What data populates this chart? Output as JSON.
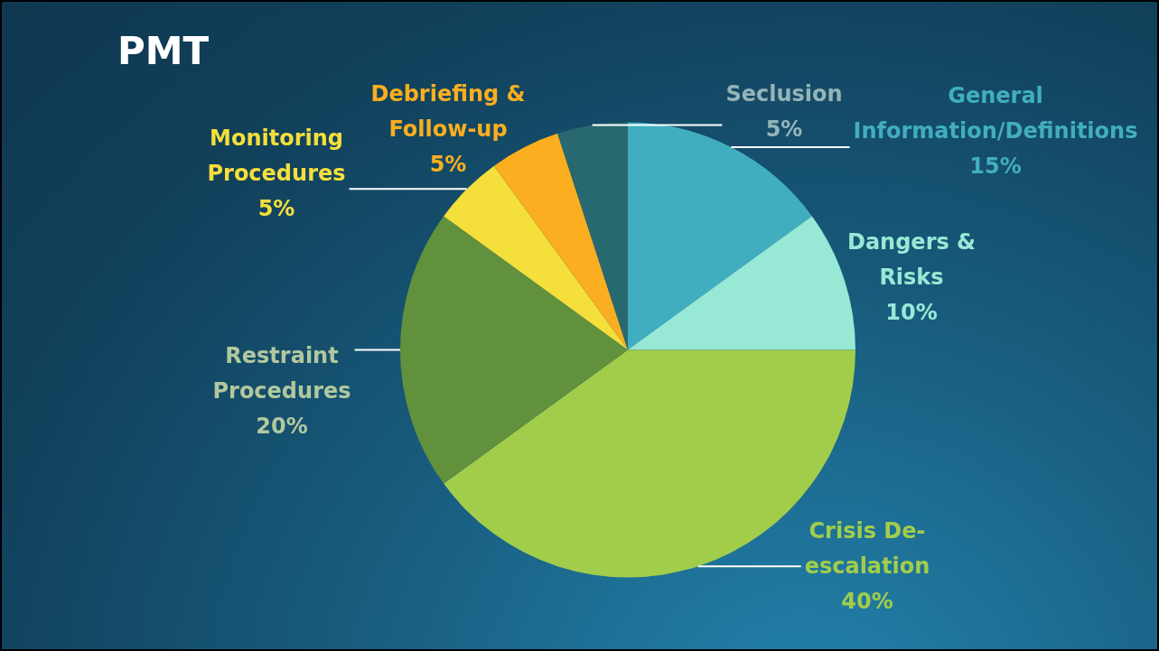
{
  "chart_data": {
    "type": "pie",
    "title": "PMT",
    "categories": [
      "General Information/Definitions",
      "Dangers & Risks",
      "Crisis De-escalation",
      "Restraint Procedures",
      "Monitoring Procedures",
      "Debriefing & Follow-up",
      "Seclusion"
    ],
    "values": [
      15,
      10,
      40,
      20,
      5,
      5,
      5
    ],
    "value_labels": [
      "15%",
      "10%",
      "40%",
      "20%",
      "5%",
      "5%",
      "5%"
    ],
    "colors": [
      "#41aebf",
      "#98e8d6",
      "#a2cd4b",
      "#62913d",
      "#f4df3b",
      "#fbae1f",
      "#28696f"
    ]
  }
}
